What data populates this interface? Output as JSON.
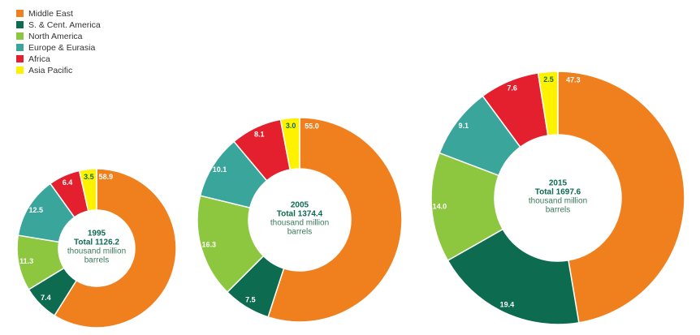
{
  "chart_data": [
    {
      "type": "donut",
      "center_text": [
        "1995",
        "Total 1126.2",
        "thousand million",
        "barrels"
      ],
      "categories": [
        "Middle East",
        "S. & Cent. America",
        "North America",
        "Europe & Eurasia",
        "Africa",
        "Asia Pacific"
      ],
      "colors": [
        "#f07f1e",
        "#0d6b4f",
        "#8dc63f",
        "#3aa59b",
        "#e4202e",
        "#fff200"
      ],
      "values": [
        58.9,
        7.4,
        11.3,
        12.5,
        6.4,
        3.5
      ],
      "value_labels": [
        "58.9",
        "7.4",
        "11.3",
        "12.5",
        "6.4",
        "3.5"
      ]
    },
    {
      "type": "donut",
      "center_text": [
        "2005",
        "Total 1374.4",
        "thousand million",
        "barrels"
      ],
      "categories": [
        "Middle East",
        "S. & Cent. America",
        "North America",
        "Europe & Eurasia",
        "Africa",
        "Asia Pacific"
      ],
      "colors": [
        "#f07f1e",
        "#0d6b4f",
        "#8dc63f",
        "#3aa59b",
        "#e4202e",
        "#fff200"
      ],
      "values": [
        55.0,
        7.5,
        16.3,
        10.1,
        8.1,
        3.0
      ],
      "value_labels": [
        "55.0",
        "7.5",
        "16.3",
        "10.1",
        "8.1",
        "3.0"
      ]
    },
    {
      "type": "donut",
      "center_text": [
        "2015",
        "Total 1697.6",
        "thousand million",
        "barrels"
      ],
      "categories": [
        "Middle East",
        "S. & Cent. America",
        "North America",
        "Europe & Eurasia",
        "Africa",
        "Asia Pacific"
      ],
      "colors": [
        "#f07f1e",
        "#0d6b4f",
        "#8dc63f",
        "#3aa59b",
        "#e4202e",
        "#fff200"
      ],
      "values": [
        47.3,
        19.4,
        14.0,
        9.1,
        7.6,
        2.5
      ],
      "value_labels": [
        "47.3",
        "19.4",
        "14.0",
        "9.1",
        "7.6",
        "2.5"
      ]
    }
  ]
}
